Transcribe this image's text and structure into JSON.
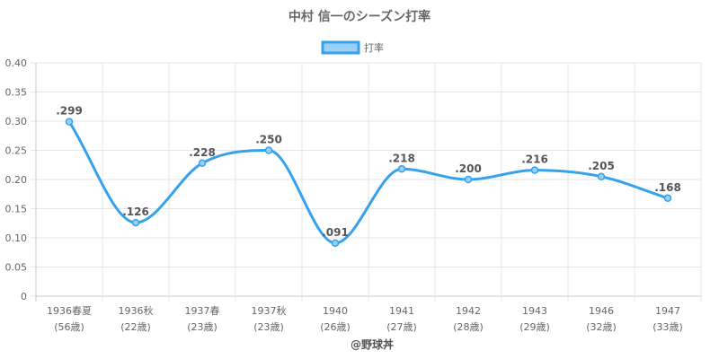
{
  "chart_data": {
    "type": "line",
    "title": "中村 信一のシーズン打率",
    "categories": [
      "1936春夏",
      "1936秋",
      "1937春",
      "1937秋",
      "1940",
      "1941",
      "1942",
      "1943",
      "1946",
      "1947"
    ],
    "ages": [
      "(56歳)",
      "(22歳)",
      "(23歳)",
      "(23歳)",
      "(26歳)",
      "(27歳)",
      "(28歳)",
      "(29歳)",
      "(32歳)",
      "(33歳)"
    ],
    "series": [
      {
        "name": "打率",
        "values": [
          0.299,
          0.126,
          0.228,
          0.25,
          0.091,
          0.218,
          0.2,
          0.216,
          0.205,
          0.168
        ],
        "labels": [
          ".299",
          ".126",
          ".228",
          ".250",
          ".091",
          ".218",
          ".200",
          ".216",
          ".205",
          ".168"
        ]
      }
    ],
    "ylim": [
      0,
      0.4
    ],
    "yticks": [
      "0",
      "0.05",
      "0.10",
      "0.15",
      "0.20",
      "0.25",
      "0.30",
      "0.35",
      "0.40"
    ],
    "grid": true,
    "legend_position": "top-center",
    "colors": {
      "line": "#36a2eb",
      "fill": "#9ad0f5",
      "grid": "#e6e6e6",
      "text": "#666666"
    }
  },
  "credit": "@野球丼"
}
